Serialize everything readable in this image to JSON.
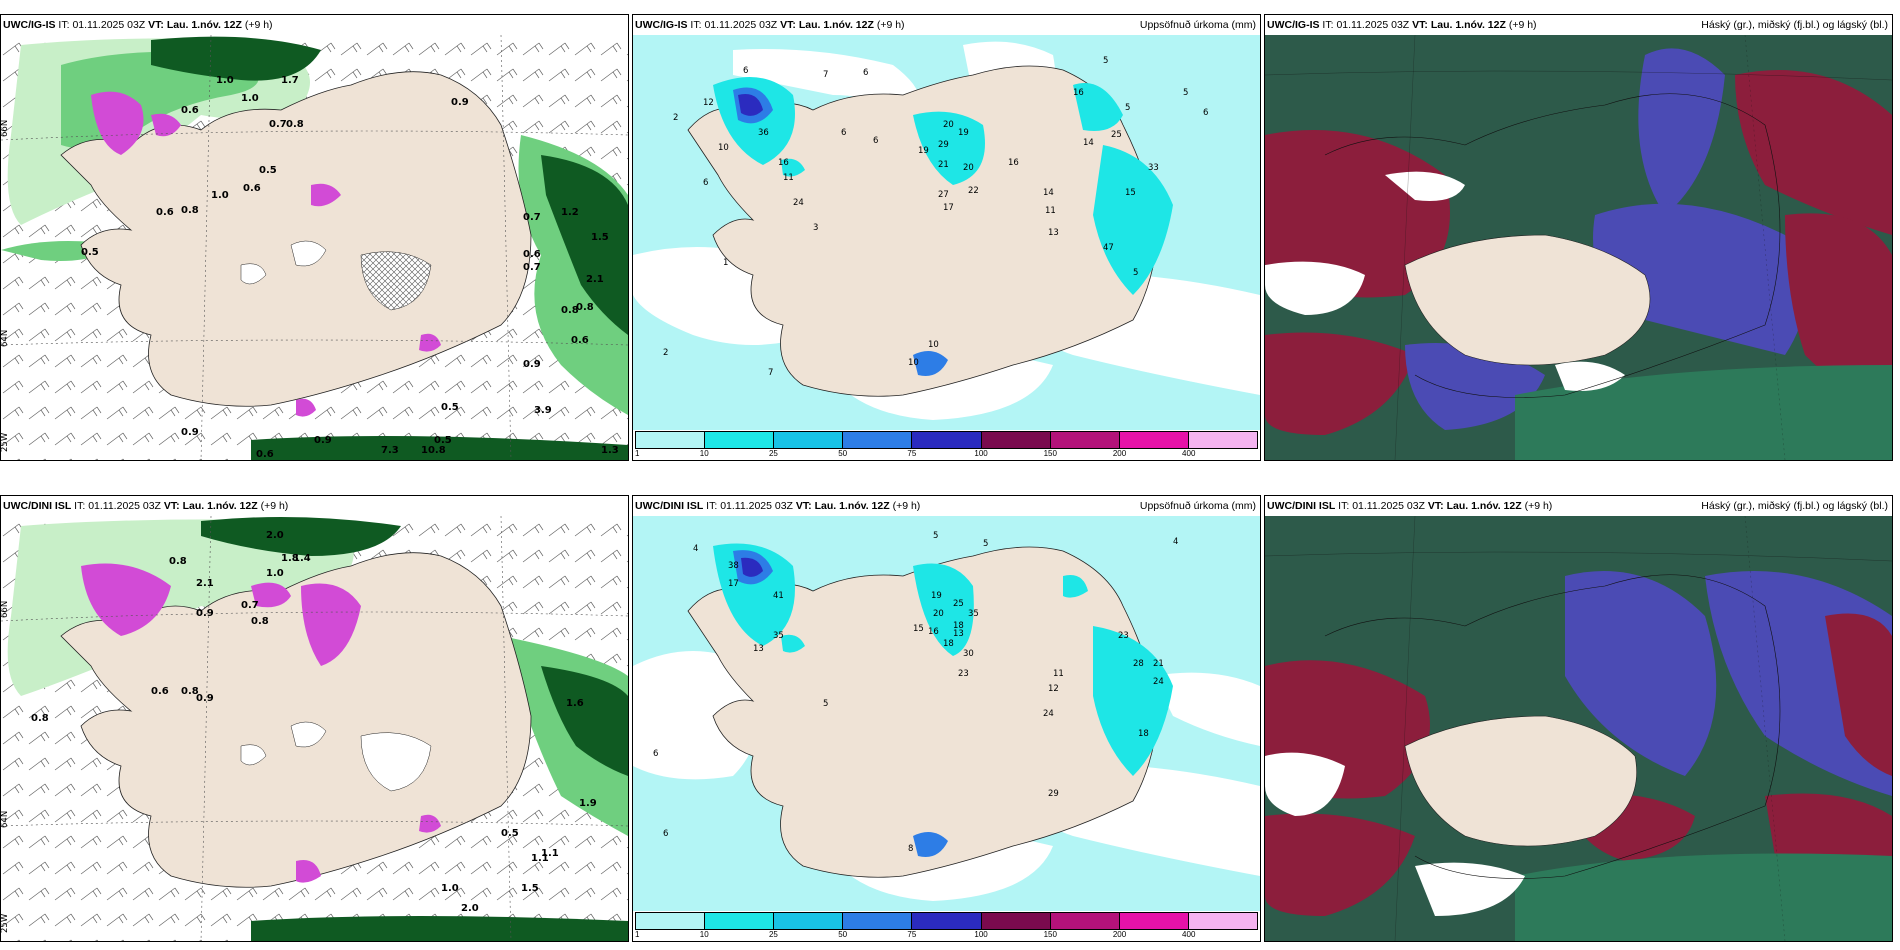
{
  "rows": [
    {
      "model": "UWC/IG-IS",
      "it_label": "IT:",
      "it_value": "01.11.2025 03Z",
      "vt_label": "VT:",
      "vt_value": "Lau. 1.nóv. 12Z",
      "lead": "(+9 h)"
    },
    {
      "model": "UWC/DINI ISL",
      "it_label": "IT:",
      "it_value": "01.11.2025 03Z",
      "vt_label": "VT:",
      "vt_value": "Lau. 1.nóv. 12Z",
      "lead": "(+9 h)"
    }
  ],
  "titles": {
    "precip": "Uppsöfnuð úrkoma (mm)",
    "clouds": "Háský (gr.), miðský (fj.bl.) og lágský (bl.)"
  },
  "lat_labels": [
    "66N",
    "64N",
    "25W",
    "16W"
  ],
  "colorbar": {
    "ticks": [
      "1",
      "10",
      "25",
      "50",
      "75",
      "100",
      "150",
      "200",
      "400"
    ],
    "colors": [
      "#b3f5f5",
      "#1ee6e6",
      "#19c3e6",
      "#2d7de6",
      "#2b2bbf",
      "#7a0a4e",
      "#b3127a",
      "#e612a8",
      "#f5b3f0"
    ]
  },
  "colors": {
    "land": "#efe3d6",
    "sea_white": "#ffffff",
    "green_light": "#c8efc8",
    "green_mid": "#6fcf7f",
    "green_dark": "#0f5a22",
    "magenta": "#d24bd6",
    "cyan_light": "#b3f5f5",
    "cloud_high": "#8c1e3c",
    "cloud_mid": "#4b4bb4",
    "cloud_low": "#2d7a5a"
  },
  "ig_precip_values": [
    "6",
    "7",
    "6",
    "5",
    "2",
    "5",
    "6",
    "12",
    "10",
    "6",
    "6",
    "16",
    "6",
    "14",
    "5",
    "25",
    "33",
    "15",
    "20",
    "19",
    "29",
    "19",
    "21",
    "20",
    "22",
    "27",
    "17",
    "14",
    "11",
    "13",
    "11",
    "24",
    "36",
    "16",
    "47",
    "5",
    "3",
    "1",
    "7",
    "2",
    "10",
    "10",
    "16"
  ],
  "ig_wind_values": [
    "1.0",
    "1.7",
    "1.0",
    "0.9",
    "0.6",
    "0.5",
    "0.7",
    "0.8",
    "0.6",
    "1.0",
    "0.6",
    "0.8",
    "0.5",
    "2.1",
    "0.8",
    "0.6",
    "0.9",
    "3.9",
    "0.5",
    "0.7",
    "0.6",
    "1.2",
    "1.5",
    "0.7",
    "0.8",
    "0.9",
    "7.3",
    "10.8",
    "0.5",
    "0.6",
    "0.9",
    "1.3"
  ],
  "dini_precip_values": [
    "4",
    "5",
    "5",
    "4",
    "6",
    "13",
    "17",
    "38",
    "41",
    "35",
    "13",
    "19",
    "20",
    "18",
    "25",
    "35",
    "28",
    "23",
    "21",
    "24",
    "15",
    "16",
    "18",
    "30",
    "23",
    "12",
    "24",
    "11",
    "5",
    "8",
    "6",
    "18",
    "29"
  ],
  "dini_wind_values": [
    "2.0",
    "1.4",
    "0.8",
    "0.9",
    "1.0",
    "0.7",
    "0.8",
    "1.8",
    "2.1",
    "0.6",
    "0.8",
    "0.9",
    "1.6",
    "1.9",
    "0.5",
    "1.5",
    "1.0",
    "1.1",
    "2.0",
    "0.8",
    "1.1"
  ]
}
